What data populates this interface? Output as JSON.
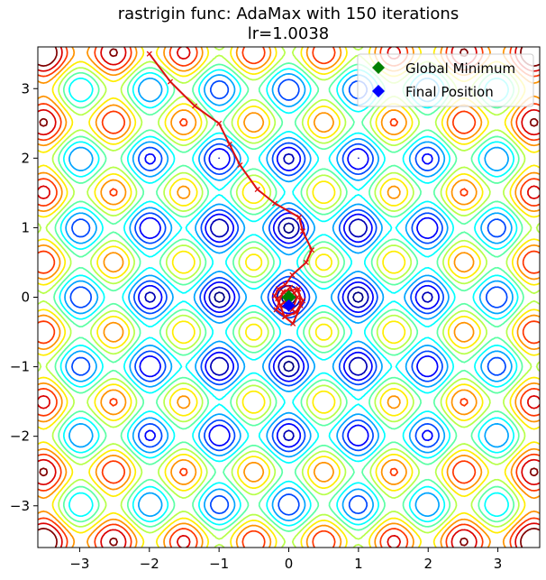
{
  "title": {
    "line1": "rastrigin func: AdaMax with 150 iterations",
    "line2": "lr=1.0038"
  },
  "legend": {
    "placement": "top-right",
    "items": [
      {
        "label": "Global Minimum",
        "marker": "diamond",
        "color": "#008000"
      },
      {
        "label": "Final Position",
        "marker": "diamond",
        "color": "#0000ff"
      }
    ]
  },
  "chart_data": {
    "type": "contour",
    "function": "rastrigin",
    "xlim": [
      -3.6,
      3.6
    ],
    "ylim": [
      -3.6,
      3.6
    ],
    "x_ticks": [
      -3,
      -2,
      -1,
      0,
      1,
      2,
      3
    ],
    "x_tick_labels": [
      "−3",
      "−2",
      "−1",
      "0",
      "1",
      "2",
      "3"
    ],
    "y_ticks": [
      -3,
      -2,
      -1,
      0,
      1,
      2,
      3
    ],
    "y_tick_labels": [
      "−3",
      "−2",
      "−1",
      "0",
      "1",
      "2",
      "3"
    ],
    "grid": false,
    "colormap": "jet",
    "contour_levels": [
      2,
      5,
      9,
      13,
      18,
      23,
      28,
      33,
      38,
      43,
      48,
      53,
      58
    ],
    "optimizer_path": {
      "color": "#dd1111",
      "points": [
        [
          -2.0,
          3.5
        ],
        [
          -1.7,
          3.1
        ],
        [
          -1.35,
          2.75
        ],
        [
          -1.0,
          2.5
        ],
        [
          -0.85,
          2.2
        ],
        [
          -0.7,
          1.9
        ],
        [
          -0.45,
          1.55
        ],
        [
          -0.2,
          1.35
        ],
        [
          0.15,
          1.15
        ],
        [
          0.2,
          0.95
        ],
        [
          0.33,
          0.68
        ],
        [
          0.25,
          0.5
        ],
        [
          0.05,
          0.32
        ],
        [
          -0.05,
          0.18
        ],
        [
          -0.15,
          0.12
        ],
        [
          -0.2,
          0.02
        ],
        [
          -0.12,
          -0.12
        ],
        [
          0.12,
          0.1
        ],
        [
          0.2,
          -0.05
        ],
        [
          0.1,
          -0.22
        ],
        [
          -0.05,
          -0.28
        ],
        [
          -0.18,
          -0.18
        ],
        [
          -0.08,
          0.08
        ],
        [
          0.14,
          0.12
        ],
        [
          0.17,
          -0.12
        ],
        [
          0.06,
          -0.38
        ],
        [
          -0.06,
          -0.28
        ],
        [
          -0.16,
          -0.02
        ],
        [
          0.02,
          0.14
        ],
        [
          0.12,
          0.0
        ],
        [
          0.05,
          -0.18
        ],
        [
          -0.04,
          -0.12
        ],
        [
          -0.02,
          0.02
        ],
        [
          0.0,
          -0.05
        ]
      ]
    },
    "global_minimum": {
      "x": 0.0,
      "y": 0.0,
      "color": "#008000"
    },
    "final_position": {
      "x": 0.0,
      "y": -0.12,
      "color": "#0000ff"
    }
  }
}
